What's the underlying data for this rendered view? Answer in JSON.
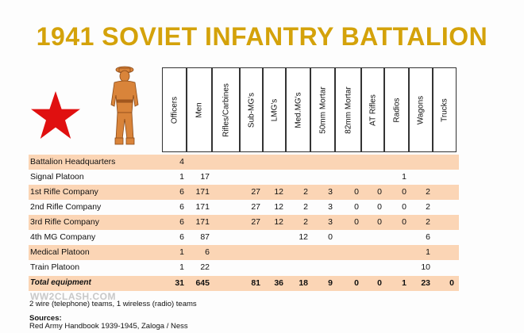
{
  "title": "1941 SOVIET INFANTRY BATTALION",
  "colors": {
    "title": "#d4a20a",
    "star": "#e01010",
    "row_shade": "#fbd5b5",
    "soldier": "#d9843a"
  },
  "columns": [
    "Officers",
    "Men",
    "Rifles/Carbines",
    "Sub-MG's",
    "LMG's",
    "Med.MG's",
    "50mm Mortar",
    "82mm Mortar",
    "AT Rifles",
    "Radios",
    "Wagons",
    "Trucks"
  ],
  "rows": [
    {
      "label": "Battalion Headquarters",
      "shaded": true,
      "values": [
        "4",
        "",
        "",
        "",
        "",
        "",
        "",
        "",
        "",
        "",
        "",
        ""
      ]
    },
    {
      "label": "Signal Platoon",
      "shaded": false,
      "values": [
        "1",
        "17",
        "",
        "",
        "",
        "",
        "",
        "",
        "",
        "1",
        "",
        ""
      ]
    },
    {
      "label": "1st Rifle Company",
      "shaded": true,
      "values": [
        "6",
        "171",
        "",
        "27",
        "12",
        "2",
        "3",
        "0",
        "0",
        "0",
        "2",
        ""
      ]
    },
    {
      "label": "2nd Rifle Company",
      "shaded": false,
      "values": [
        "6",
        "171",
        "",
        "27",
        "12",
        "2",
        "3",
        "0",
        "0",
        "0",
        "2",
        ""
      ]
    },
    {
      "label": "3rd Rifle Company",
      "shaded": true,
      "values": [
        "6",
        "171",
        "",
        "27",
        "12",
        "2",
        "3",
        "0",
        "0",
        "0",
        "2",
        ""
      ]
    },
    {
      "label": "4th MG Company",
      "shaded": false,
      "values": [
        "6",
        "87",
        "",
        "",
        "",
        "12",
        "0",
        "",
        "",
        "",
        "6",
        ""
      ]
    },
    {
      "label": "Medical Platoon",
      "shaded": true,
      "values": [
        "1",
        "6",
        "",
        "",
        "",
        "",
        "",
        "",
        "",
        "",
        "1",
        ""
      ]
    },
    {
      "label": "Train Platoon",
      "shaded": false,
      "values": [
        "1",
        "22",
        "",
        "",
        "",
        "",
        "",
        "",
        "",
        "",
        "10",
        ""
      ]
    }
  ],
  "total": {
    "label": "Total equipment",
    "values": [
      "31",
      "645",
      "",
      "81",
      "36",
      "18",
      "9",
      "0",
      "0",
      "1",
      "23",
      "0"
    ]
  },
  "watermark": "WW2CLASH.COM",
  "notes": {
    "line1": "2 wire (telephone) teams, 1 wireless (radio) teams",
    "sources_label": "Sources:",
    "sources": "Red Army Handbook 1939-1945, Zaloga / Ness"
  },
  "icons": {
    "star": "red-star-icon",
    "soldier": "soviet-officer-figure"
  }
}
